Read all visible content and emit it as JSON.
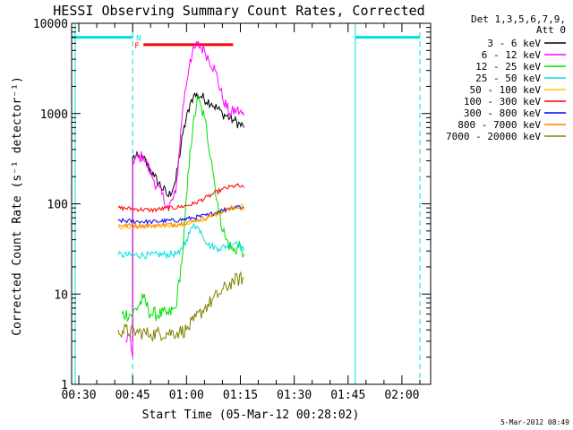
{
  "chart_data": {
    "type": "line",
    "title": "HESSI Observing Summary Count Rates, Corrected",
    "xlabel": "Start Time (05-Mar-12 00:28:02)",
    "ylabel": "Corrected Count Rate (s⁻¹ detector⁻¹)",
    "yscale": "log",
    "xlim": [
      "00:28",
      "02:08"
    ],
    "ylim": [
      1,
      10000
    ],
    "x_ticks": [
      "00:30",
      "00:45",
      "01:00",
      "01:15",
      "01:30",
      "01:45",
      "02:00"
    ],
    "y_ticks": [
      "1",
      "10",
      "100",
      "1000",
      "10000"
    ],
    "legend_header": [
      "Det 1,3,5,6,7,9,",
      "Att 0"
    ],
    "legend_position": "top-right, outside plot",
    "timestamp": "5-Mar-2012 08:49",
    "flags": [
      {
        "label": "F",
        "color": "#ff0000",
        "start": "00:48",
        "end": "01:13",
        "value": 5800
      },
      {
        "label": "N",
        "color": "#00e0e0",
        "start": "00:28",
        "end": "00:45",
        "value": 7000
      },
      {
        "label": "",
        "color": "#00e0e0",
        "start": "01:47",
        "end": "02:05",
        "value": 7000
      }
    ],
    "vlines": [
      {
        "time": "00:29",
        "style": "solid",
        "color": "#00e0e0"
      },
      {
        "time": "00:45",
        "style": "dashed",
        "color": "#00e0e0"
      },
      {
        "time": "01:47",
        "style": "solid",
        "color": "#00e0e0"
      },
      {
        "time": "02:05",
        "style": "dashed",
        "color": "#00e0e0"
      }
    ],
    "series": [
      {
        "name": "3 - 6 keV",
        "color": "#000000",
        "noise": 0.06,
        "points": [
          [
            "00:45",
            3
          ],
          [
            "00:45",
            330
          ],
          [
            "00:48",
            320
          ],
          [
            "00:51",
            200
          ],
          [
            "00:55",
            120
          ],
          [
            "00:57",
            180
          ],
          [
            "00:59",
            600
          ],
          [
            "01:01",
            1300
          ],
          [
            "01:02",
            1600
          ],
          [
            "01:04",
            1550
          ],
          [
            "01:07",
            1300
          ],
          [
            "01:10",
            1000
          ],
          [
            "01:13",
            850
          ],
          [
            "01:16",
            700
          ]
        ]
      },
      {
        "name": "6 - 12 keV",
        "color": "#ff00ff",
        "noise": 0.07,
        "points": [
          [
            "00:43",
            3
          ],
          [
            "00:44",
            3.5
          ],
          [
            "00:45",
            2
          ],
          [
            "00:45",
            300
          ],
          [
            "00:48",
            340
          ],
          [
            "00:51",
            180
          ],
          [
            "00:55",
            90
          ],
          [
            "00:57",
            130
          ],
          [
            "00:59",
            1200
          ],
          [
            "01:01",
            4000
          ],
          [
            "01:03",
            5900
          ],
          [
            "01:05",
            5000
          ],
          [
            "01:08",
            3000
          ],
          [
            "01:10",
            1500
          ],
          [
            "01:12",
            1000
          ],
          [
            "01:14",
            1100
          ],
          [
            "01:16",
            950
          ]
        ]
      },
      {
        "name": "12 - 25 keV",
        "color": "#00e000",
        "noise": 0.08,
        "points": [
          [
            "00:42",
            6
          ],
          [
            "00:45",
            6
          ],
          [
            "00:48",
            9
          ],
          [
            "00:50",
            6
          ],
          [
            "00:55",
            6
          ],
          [
            "00:57",
            7
          ],
          [
            "00:59",
            30
          ],
          [
            "01:01",
            400
          ],
          [
            "01:03",
            1500
          ],
          [
            "01:05",
            900
          ],
          [
            "01:07",
            300
          ],
          [
            "01:09",
            80
          ],
          [
            "01:11",
            40
          ],
          [
            "01:13",
            30
          ],
          [
            "01:15",
            35
          ],
          [
            "01:16",
            28
          ]
        ]
      },
      {
        "name": "25 - 50 keV",
        "color": "#00e0e0",
        "noise": 0.04,
        "points": [
          [
            "00:41",
            27
          ],
          [
            "00:50",
            27
          ],
          [
            "00:58",
            28
          ],
          [
            "01:00",
            40
          ],
          [
            "01:02",
            60
          ],
          [
            "01:04",
            50
          ],
          [
            "01:06",
            35
          ],
          [
            "01:09",
            32
          ],
          [
            "01:12",
            35
          ],
          [
            "01:14",
            38
          ],
          [
            "01:16",
            30
          ]
        ]
      },
      {
        "name": "50 - 100 keV",
        "color": "#ffc000",
        "noise": 0.025,
        "points": [
          [
            "00:41",
            55
          ],
          [
            "00:50",
            56
          ],
          [
            "00:58",
            58
          ],
          [
            "01:00",
            60
          ],
          [
            "01:04",
            65
          ],
          [
            "01:08",
            75
          ],
          [
            "01:12",
            90
          ],
          [
            "01:16",
            95
          ]
        ]
      },
      {
        "name": "100 - 300 keV",
        "color": "#ff0000",
        "noise": 0.025,
        "points": [
          [
            "00:41",
            90
          ],
          [
            "00:45",
            88
          ],
          [
            "00:50",
            85
          ],
          [
            "00:58",
            92
          ],
          [
            "01:02",
            100
          ],
          [
            "01:06",
            120
          ],
          [
            "01:10",
            145
          ],
          [
            "01:14",
            160
          ],
          [
            "01:16",
            150
          ]
        ]
      },
      {
        "name": "300 - 800 keV",
        "color": "#0000ff",
        "noise": 0.025,
        "points": [
          [
            "00:41",
            65
          ],
          [
            "00:50",
            63
          ],
          [
            "00:58",
            66
          ],
          [
            "01:02",
            70
          ],
          [
            "01:06",
            75
          ],
          [
            "01:10",
            85
          ],
          [
            "01:14",
            95
          ],
          [
            "01:16",
            90
          ]
        ]
      },
      {
        "name": "800 - 7000 keV",
        "color": "#ff8000",
        "noise": 0.025,
        "points": [
          [
            "00:41",
            58
          ],
          [
            "00:50",
            57
          ],
          [
            "00:58",
            60
          ],
          [
            "01:02",
            65
          ],
          [
            "01:06",
            72
          ],
          [
            "01:10",
            82
          ],
          [
            "01:14",
            92
          ],
          [
            "01:16",
            85
          ]
        ]
      },
      {
        "name": "7000 - 20000 keV",
        "color": "#808000",
        "noise": 0.08,
        "points": [
          [
            "00:41",
            4
          ],
          [
            "00:46",
            3.8
          ],
          [
            "00:50",
            3.6
          ],
          [
            "00:58",
            3.8
          ],
          [
            "01:00",
            4
          ],
          [
            "01:02",
            5
          ],
          [
            "01:05",
            7
          ],
          [
            "01:09",
            10
          ],
          [
            "01:13",
            14
          ],
          [
            "01:16",
            15
          ]
        ]
      }
    ]
  }
}
